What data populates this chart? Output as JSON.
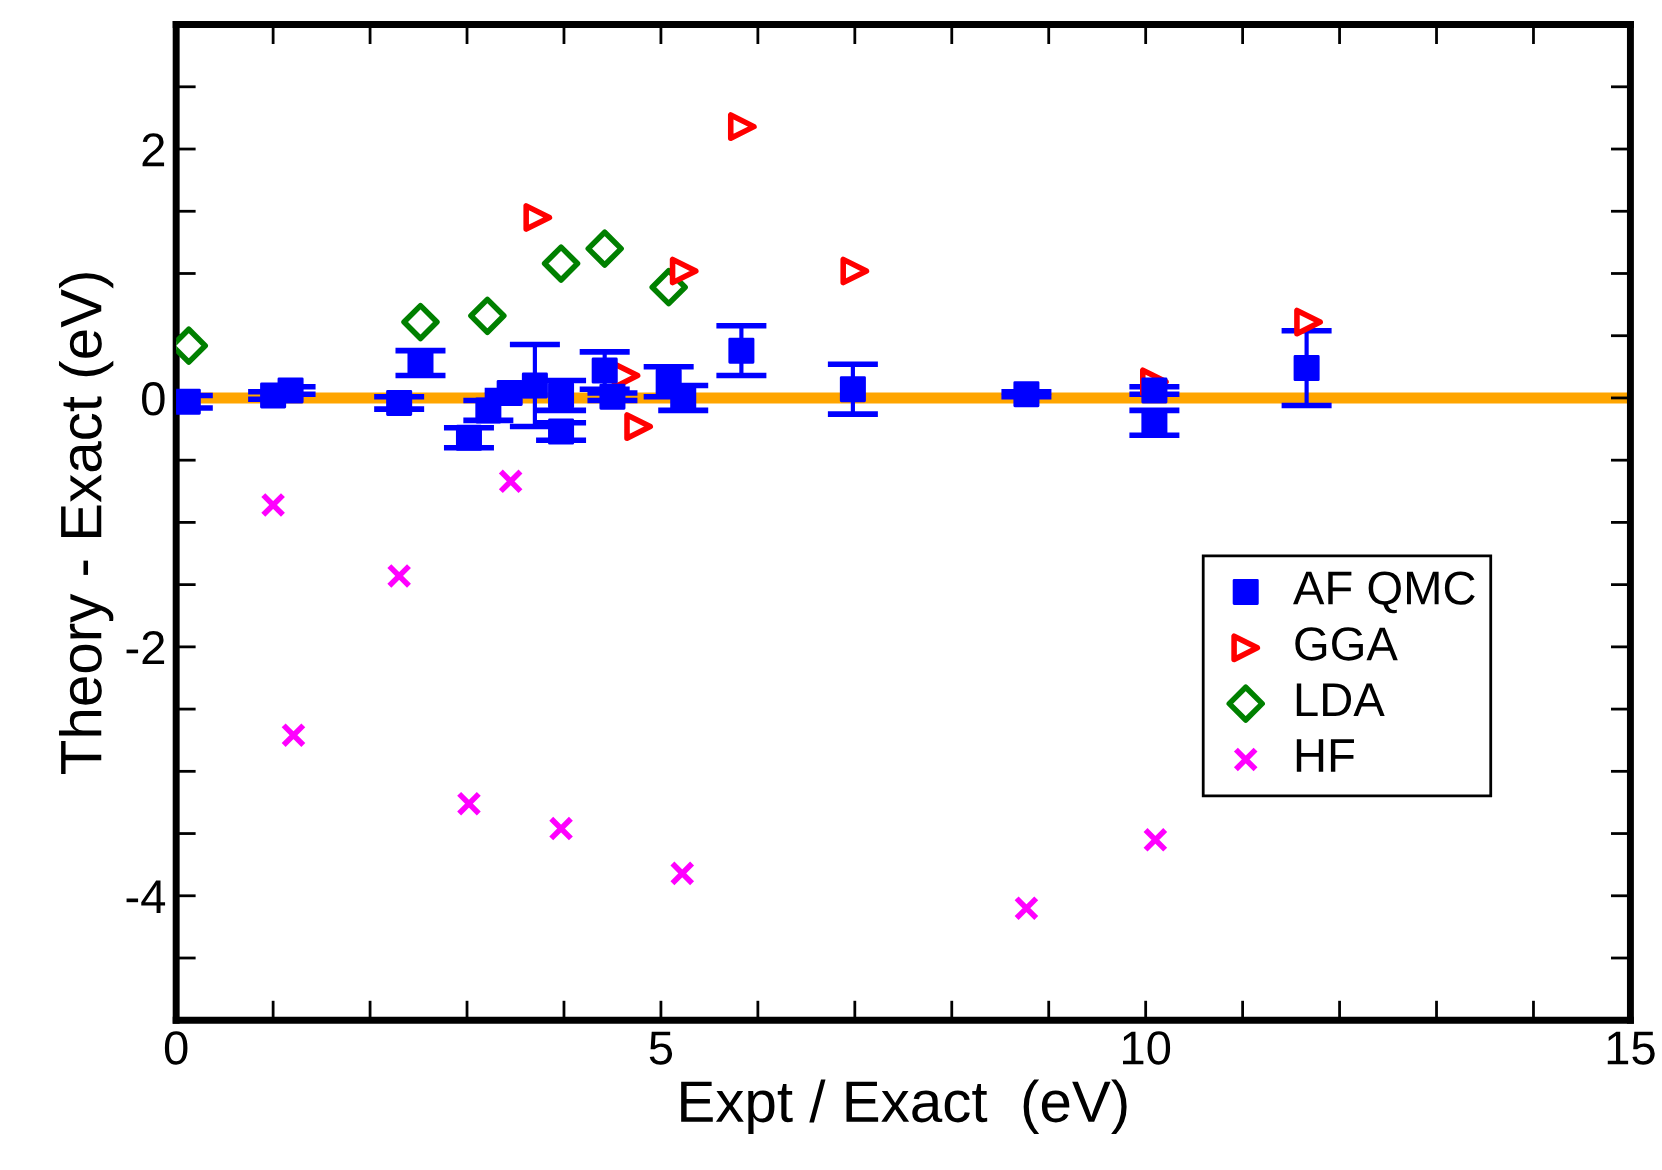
{
  "chart_data": {
    "type": "scatter",
    "xlabel": "Expt / Exact  (eV)",
    "ylabel": "Theory - Exact (eV)",
    "xlim": [
      0,
      15
    ],
    "ylim": [
      -5,
      3
    ],
    "xticks": [
      0,
      {
        "value": 1,
        "label": null
      },
      {
        "value": 2,
        "label": null
      },
      {
        "value": 3,
        "label": null
      },
      {
        "value": 4,
        "label": null
      },
      5,
      {
        "value": 6,
        "label": null
      },
      {
        "value": 7,
        "label": null
      },
      {
        "value": 8,
        "label": null
      },
      {
        "value": 9,
        "label": null
      },
      10,
      {
        "value": 11,
        "label": null
      },
      {
        "value": 12,
        "label": null
      },
      {
        "value": 13,
        "label": null
      },
      {
        "value": 14,
        "label": null
      },
      15
    ],
    "yticks": [
      {
        "value": -5,
        "label": null
      },
      {
        "value": -4.5,
        "label": null
      },
      -4,
      {
        "value": -3.5,
        "label": null
      },
      {
        "value": -3,
        "label": null
      },
      {
        "value": -2.5,
        "label": null
      },
      -2,
      {
        "value": -1.5,
        "label": null
      },
      {
        "value": -1,
        "label": null
      },
      {
        "value": -0.5,
        "label": null
      },
      0,
      {
        "value": 0.5,
        "label": null
      },
      {
        "value": 1,
        "label": null
      },
      {
        "value": 1.5,
        "label": null
      },
      2,
      {
        "value": 2.5,
        "label": null
      },
      {
        "value": 3,
        "label": null
      }
    ],
    "grid": false,
    "legend": "right",
    "ref_lines": [
      {
        "axis": "y",
        "value": 0,
        "color": "#ffa500",
        "line_style": "solid"
      }
    ],
    "series": [
      {
        "name": "AF QMC",
        "color": "#0000ff",
        "marker": "square",
        "x": [
          0.12,
          1.0,
          1.18,
          2.3,
          2.52,
          3.02,
          3.22,
          3.44,
          3.7,
          3.97,
          3.97,
          4.42,
          4.5,
          5.08,
          5.23,
          5.83,
          6.98,
          8.77,
          10.09,
          10.09,
          11.66
        ],
        "values": [
          -0.03,
          0.02,
          0.06,
          -0.04,
          0.28,
          -0.32,
          -0.1,
          0.04,
          0.1,
          -0.27,
          0.02,
          0.22,
          0.01,
          0.13,
          0.0,
          0.38,
          0.07,
          0.03,
          0.06,
          -0.2,
          0.24
        ],
        "errors": [
          0.05,
          0.03,
          0.03,
          0.05,
          0.1,
          0.08,
          0.08,
          0.02,
          0.33,
          0.07,
          0.12,
          0.15,
          0.03,
          0.12,
          0.1,
          0.2,
          0.2,
          0.02,
          0.03,
          0.1,
          0.3
        ]
      },
      {
        "name": "GGA",
        "color": "#ff0000",
        "marker": "triangle",
        "x": [
          3.73,
          4.64,
          4.77,
          5.24,
          5.84,
          7.0,
          10.09,
          11.68
        ],
        "values": [
          1.45,
          0.18,
          -0.23,
          1.02,
          2.18,
          1.02,
          0.13,
          0.61
        ]
      },
      {
        "name": "LDA",
        "color": "#008000",
        "marker": "diamond",
        "x": [
          0.13,
          2.52,
          3.21,
          3.97,
          4.42,
          5.08
        ],
        "values": [
          0.42,
          0.61,
          0.66,
          1.08,
          1.2,
          0.89
        ]
      },
      {
        "name": "HF",
        "color": "#ff00ff",
        "marker": "cross",
        "x": [
          1.0,
          1.21,
          2.3,
          3.02,
          3.45,
          3.97,
          5.22,
          8.77,
          10.1
        ],
        "values": [
          -0.86,
          -2.71,
          -1.43,
          -3.26,
          -0.67,
          -3.46,
          -3.82,
          -4.1,
          -3.55
        ]
      }
    ]
  }
}
